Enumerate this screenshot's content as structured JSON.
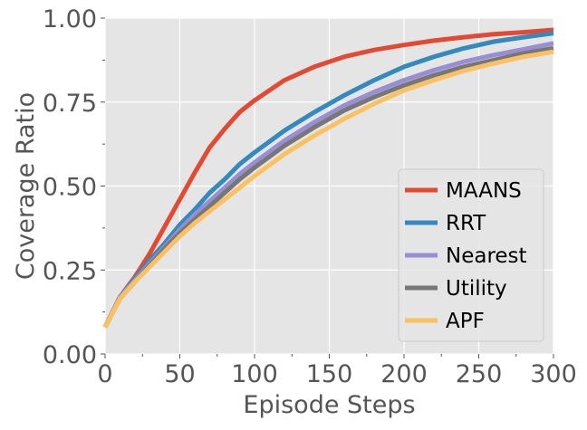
{
  "chart_data": {
    "type": "line",
    "title": "",
    "xlabel": "Episode Steps",
    "ylabel": "Coverage Ratio",
    "xlim": [
      0,
      300
    ],
    "ylim": [
      0.0,
      1.0
    ],
    "xticks": [
      0,
      50,
      100,
      150,
      200,
      250,
      300
    ],
    "xtick_labels": [
      "0",
      "50",
      "100",
      "150",
      "200",
      "250",
      "300"
    ],
    "yticks": [
      0.0,
      0.25,
      0.5,
      0.75,
      1.0
    ],
    "ytick_labels": [
      "0.00",
      "0.25",
      "0.50",
      "0.75",
      "1.00"
    ],
    "grid": true,
    "legend_position": "lower-right",
    "background_color": "#e5e5e5",
    "grid_color": "#ffffff",
    "x": [
      0,
      10,
      20,
      30,
      40,
      50,
      60,
      70,
      80,
      90,
      100,
      120,
      140,
      160,
      180,
      200,
      220,
      240,
      260,
      280,
      300
    ],
    "series": [
      {
        "name": "MAANS",
        "color": "#e24a33",
        "values": [
          0.08,
          0.17,
          0.23,
          0.3,
          0.38,
          0.46,
          0.54,
          0.615,
          0.67,
          0.72,
          0.755,
          0.815,
          0.855,
          0.885,
          0.905,
          0.92,
          0.933,
          0.943,
          0.952,
          0.958,
          0.965
        ]
      },
      {
        "name": "RRT",
        "color": "#348abd",
        "values": [
          0.08,
          0.17,
          0.225,
          0.28,
          0.33,
          0.385,
          0.43,
          0.48,
          0.52,
          0.565,
          0.6,
          0.665,
          0.72,
          0.77,
          0.815,
          0.855,
          0.885,
          0.91,
          0.93,
          0.943,
          0.955
        ]
      },
      {
        "name": "Nearest",
        "color": "#988ed5",
        "values": [
          0.08,
          0.17,
          0.22,
          0.27,
          0.32,
          0.37,
          0.415,
          0.455,
          0.495,
          0.535,
          0.57,
          0.635,
          0.69,
          0.74,
          0.78,
          0.815,
          0.845,
          0.87,
          0.89,
          0.907,
          0.925
        ]
      },
      {
        "name": "Utility",
        "color": "#777777",
        "values": [
          0.08,
          0.165,
          0.215,
          0.265,
          0.315,
          0.36,
          0.4,
          0.44,
          0.48,
          0.52,
          0.555,
          0.62,
          0.675,
          0.725,
          0.765,
          0.8,
          0.83,
          0.855,
          0.875,
          0.895,
          0.91
        ]
      },
      {
        "name": "APF",
        "color": "#fbc15e",
        "values": [
          0.08,
          0.165,
          0.215,
          0.26,
          0.305,
          0.35,
          0.39,
          0.425,
          0.46,
          0.495,
          0.53,
          0.595,
          0.65,
          0.7,
          0.745,
          0.785,
          0.815,
          0.843,
          0.865,
          0.885,
          0.9
        ]
      }
    ]
  }
}
